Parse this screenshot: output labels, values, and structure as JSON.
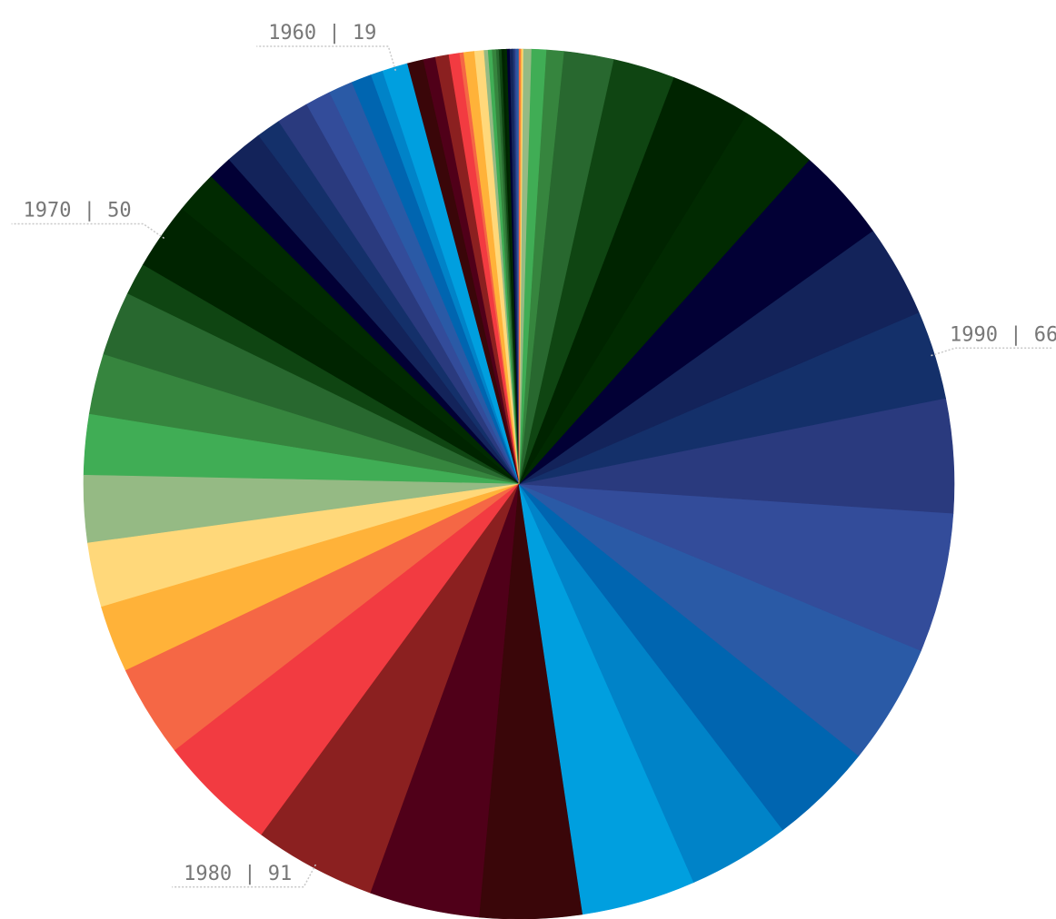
{
  "chart_data": {
    "type": "pie",
    "values": [
      1,
      1,
      1,
      1,
      1,
      2,
      2,
      2,
      2,
      2,
      2,
      3,
      3,
      3,
      7,
      8,
      3,
      8,
      10,
      9,
      12,
      19,
      9,
      15,
      18,
      19,
      24,
      18,
      28,
      18,
      32,
      50,
      24,
      48,
      45,
      45,
      50,
      48,
      50,
      69,
      89,
      91,
      82,
      76,
      85,
      76,
      78,
      90,
      104,
      85,
      66,
      69,
      70,
      57,
      60,
      46,
      37,
      13,
      11,
      6,
      1,
      1,
      1
    ],
    "labels": [
      null,
      null,
      null,
      null,
      null,
      null,
      null,
      null,
      null,
      null,
      null,
      null,
      null,
      null,
      null,
      null,
      null,
      null,
      null,
      null,
      null,
      "1960 | 19",
      null,
      null,
      null,
      null,
      null,
      null,
      null,
      null,
      null,
      "1970 | 50",
      null,
      null,
      null,
      null,
      null,
      null,
      null,
      null,
      null,
      "1980 | 91",
      null,
      null,
      null,
      null,
      null,
      null,
      null,
      null,
      "1990 | 66",
      null,
      null,
      null,
      null,
      null,
      null,
      null,
      null,
      null,
      null,
      null,
      null
    ],
    "colors": [
      "#0065b0",
      "#2a5aa6",
      "#334c9a",
      "#2a3a7e",
      "#14306a",
      "#13235a",
      "#020035",
      "#012a01",
      "#002400",
      "#0f4512",
      "#28682f",
      "#36853e",
      "#40ad55",
      "#95ba84",
      "#ffd87a",
      "#ffb239",
      "#f56745",
      "#f23b41",
      "#8b2020",
      "#500019",
      "#3a0609",
      "#009fdf",
      "#0083c8",
      "#0065b0",
      "#2a5aa6",
      "#334c9a",
      "#2a3a7e",
      "#14306a",
      "#13235a",
      "#020035",
      "#012a01",
      "#002400",
      "#0f4512",
      "#28682f",
      "#36853e",
      "#40ad55",
      "#95ba84",
      "#ffd87a",
      "#ffb239",
      "#f56745",
      "#f23b41",
      "#8b2020",
      "#500019",
      "#3a0609",
      "#009fdf",
      "#0083c8",
      "#0065b0",
      "#2a5aa6",
      "#334c9a",
      "#2a3a7e",
      "#14306a",
      "#13235a",
      "#020035",
      "#012a01",
      "#002400",
      "#0f4512",
      "#28682f",
      "#36853e",
      "#40ad55",
      "#95ba84",
      "#ffd87a",
      "#ffb239",
      "#f56745"
    ]
  }
}
